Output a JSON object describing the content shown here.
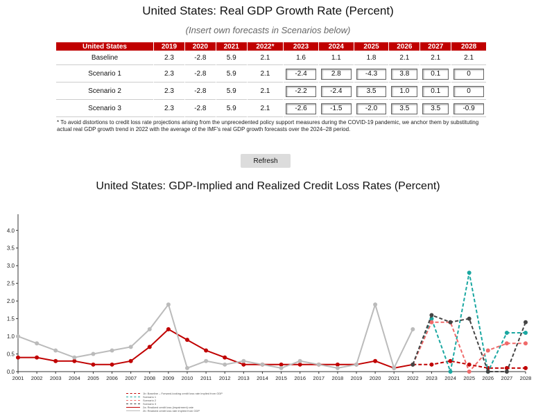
{
  "header": {
    "title": "United States: Real GDP Growth Rate (Percent)",
    "subtitle": "(Insert own forecasts in Scenarios below)"
  },
  "table": {
    "columns": [
      "United States",
      "2019",
      "2020",
      "2021",
      "2022*",
      "2023",
      "2024",
      "2025",
      "2026",
      "2027",
      "2028"
    ],
    "rows": [
      {
        "label": "Baseline",
        "fixed": [
          "2.3",
          "-2.8",
          "5.9",
          "2.1"
        ],
        "forecast": [
          "1.6",
          "1.1",
          "1.8",
          "2.1",
          "2.1",
          "2.1"
        ],
        "editable": false
      },
      {
        "label": "Scenario 1",
        "fixed": [
          "2.3",
          "-2.8",
          "5.9",
          "2.1"
        ],
        "forecast": [
          "-2.4",
          "2.8",
          "-4.3",
          "3.8",
          "0.1",
          "0"
        ],
        "editable": true
      },
      {
        "label": "Scenario 2",
        "fixed": [
          "2.3",
          "-2.8",
          "5.9",
          "2.1"
        ],
        "forecast": [
          "-2.2",
          "-2.4",
          "3.5",
          "1.0",
          "0.1",
          "0"
        ],
        "editable": true
      },
      {
        "label": "Scenario 3",
        "fixed": [
          "2.3",
          "-2.8",
          "5.9",
          "2.1"
        ],
        "forecast": [
          "-2.6",
          "-1.5",
          "-2.0",
          "3.5",
          "3.5",
          "-0.9"
        ],
        "editable": true
      }
    ]
  },
  "note": "* To avoid distortions to credit loss rate projections arising from the unprecedented policy support measures during the COVID-19 pandemic, we anchor them by substituting actual real GDP growth trend in 2022 with the average of the IMF's real GDP growth forecasts over the 2024–28 period.",
  "refresh_label": "Refresh",
  "chart_title": "United States: GDP-Implied and Realized Credit Loss Rates (Percent)",
  "chart_data": {
    "type": "line",
    "x": [
      "2001",
      "2002",
      "2003",
      "2004",
      "2005",
      "2006",
      "2007",
      "2008",
      "2009",
      "2010",
      "2011",
      "2012",
      "2013",
      "2014",
      "2015",
      "2016",
      "2017",
      "2018",
      "2019",
      "2020",
      "2021",
      "2022",
      "2023",
      "2024",
      "2025",
      "2026",
      "2027",
      "2028"
    ],
    "ylim": [
      0,
      4.3
    ],
    "yticks": [
      "0.0",
      "0.5",
      "1.0",
      "1.5",
      "2.0",
      "2.5",
      "3.0",
      "3.5",
      "4.0"
    ],
    "series": [
      {
        "name": "2a: Realized credit loss (impairment) rate",
        "color": "#c00000",
        "style": "solid",
        "values": [
          0.4,
          0.4,
          0.3,
          0.3,
          0.2,
          0.2,
          0.3,
          0.7,
          1.2,
          0.9,
          0.6,
          0.4,
          0.2,
          0.2,
          0.2,
          0.2,
          0.2,
          0.2,
          0.2,
          0.3,
          0.1,
          0.2,
          null,
          null,
          null,
          null,
          null,
          null
        ]
      },
      {
        "name": "2b: Realized credit loss rate implied from GDP",
        "color": "#bbbbbb",
        "style": "solid",
        "values": [
          1.0,
          0.8,
          0.6,
          0.4,
          0.5,
          0.6,
          0.7,
          1.2,
          1.9,
          0.1,
          0.3,
          0.2,
          0.3,
          0.2,
          0.1,
          0.3,
          0.2,
          0.1,
          0.2,
          1.9,
          0.1,
          1.2,
          null,
          null,
          null,
          null,
          null,
          null
        ]
      },
      {
        "name": "1b: Baseline – Forward-looking credit loss rate implied from GDP",
        "color": "#c00000",
        "style": "dashed",
        "values": [
          null,
          null,
          null,
          null,
          null,
          null,
          null,
          null,
          null,
          null,
          null,
          null,
          null,
          null,
          null,
          null,
          null,
          null,
          null,
          null,
          null,
          0.2,
          0.2,
          0.3,
          0.2,
          0.1,
          0.1,
          0.1
        ]
      },
      {
        "name": "Scenario 1",
        "color": "#1aa7a1",
        "style": "dashed",
        "values": [
          null,
          null,
          null,
          null,
          null,
          null,
          null,
          null,
          null,
          null,
          null,
          null,
          null,
          null,
          null,
          null,
          null,
          null,
          null,
          null,
          null,
          0.2,
          1.5,
          0.0,
          2.8,
          0.0,
          1.1,
          1.1
        ]
      },
      {
        "name": "Scenario 2",
        "color": "#f06a6a",
        "style": "dashed",
        "values": [
          null,
          null,
          null,
          null,
          null,
          null,
          null,
          null,
          null,
          null,
          null,
          null,
          null,
          null,
          null,
          null,
          null,
          null,
          null,
          null,
          null,
          0.2,
          1.4,
          1.4,
          0.0,
          0.6,
          0.8,
          0.8
        ]
      },
      {
        "name": "Scenario 3",
        "color": "#444444",
        "style": "dashed",
        "values": [
          null,
          null,
          null,
          null,
          null,
          null,
          null,
          null,
          null,
          null,
          null,
          null,
          null,
          null,
          null,
          null,
          null,
          null,
          null,
          null,
          null,
          0.2,
          1.6,
          1.4,
          1.5,
          0.0,
          0.0,
          1.4
        ]
      }
    ],
    "legend": [
      {
        "label": "1b: Baseline – Forward-looking credit loss rate implied from GDP",
        "color": "#c00000",
        "style": "dashed"
      },
      {
        "label": "Scenario 1",
        "color": "#1aa7a1",
        "style": "dashed"
      },
      {
        "label": "Scenario 2",
        "color": "#f06a6a",
        "style": "dashed"
      },
      {
        "label": "Scenario 3",
        "color": "#444444",
        "style": "dashed"
      },
      {
        "label": "2a: Realized credit loss (impairment) rate",
        "color": "#c00000",
        "style": "solid"
      },
      {
        "label": "2b: Realized credit loss rate implied from GDP",
        "color": "#bbbbbb",
        "style": "solid"
      }
    ],
    "legend_position": "bottom-left",
    "grid": false
  }
}
